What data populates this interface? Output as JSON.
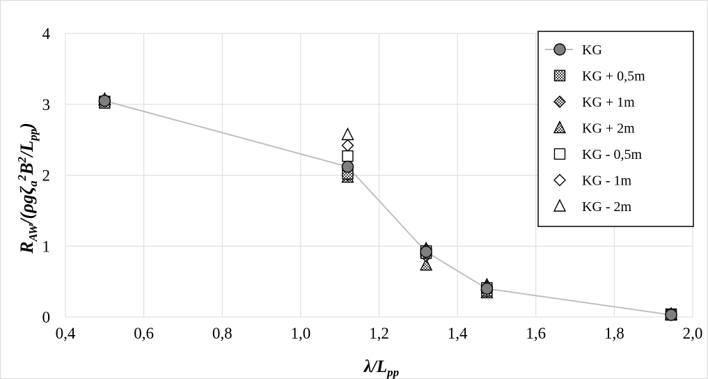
{
  "chart_data": {
    "type": "scatter",
    "title": "",
    "xlabel": {
      "main": "λ/L",
      "sub": "pp"
    },
    "ylabel": {
      "r": "R",
      "r_sub": "AW",
      "slash1": "/(ρgζ",
      "zeta_sub": "a",
      "sup1": "2",
      "b": "B",
      "sup2": "2",
      "slash2": "/L",
      "l_sub": "pp",
      "close": ")"
    },
    "xlim": [
      0.4,
      2.0
    ],
    "ylim": [
      0,
      4
    ],
    "x_ticks": [
      "0,4",
      "0,6",
      "0,8",
      "1,0",
      "1,2",
      "1,4",
      "1,6",
      "1,8",
      "2,0"
    ],
    "y_ticks": [
      "0",
      "1",
      "2",
      "3",
      "4"
    ],
    "grid": true,
    "legend_position": "top-right",
    "colors": {
      "grid": "#d9d9d9",
      "line": "#bfbfbf",
      "marker_fill": "#7f7f7f",
      "outline": "#000000",
      "hatch": "#404040"
    },
    "series": [
      {
        "name": "KG",
        "marker": "circle",
        "line": true,
        "x": [
          0.5,
          1.12,
          1.32,
          1.475,
          1.945
        ],
        "y": [
          3.05,
          2.12,
          0.92,
          0.4,
          0.03
        ]
      },
      {
        "name": "KG + 0,5m",
        "marker": "square-hatched",
        "line": false,
        "x": [
          0.5,
          1.12,
          1.32,
          1.475,
          1.945
        ],
        "y": [
          3.02,
          2.02,
          0.9,
          0.37,
          0.03
        ]
      },
      {
        "name": "KG + 1m",
        "marker": "diamond-hatched",
        "line": false,
        "x": [
          0.5,
          1.12,
          1.32,
          1.475,
          1.945
        ],
        "y": [
          3.03,
          2.0,
          0.86,
          0.37,
          0.03
        ]
      },
      {
        "name": "KG + 2m",
        "marker": "triangle-hatched",
        "line": false,
        "x": [
          0.5,
          1.12,
          1.32,
          1.475,
          1.945
        ],
        "y": [
          3.06,
          1.97,
          0.73,
          0.34,
          0.03
        ]
      },
      {
        "name": "KG - 0,5m",
        "marker": "square-open",
        "line": false,
        "x": [
          0.5,
          1.12,
          1.32,
          1.475,
          1.945
        ],
        "y": [
          3.04,
          2.27,
          0.93,
          0.41,
          0.04
        ]
      },
      {
        "name": "KG - 1m",
        "marker": "diamond-open",
        "line": false,
        "x": [
          0.5,
          1.12,
          1.32,
          1.475,
          1.945
        ],
        "y": [
          3.05,
          2.42,
          0.95,
          0.43,
          0.04
        ]
      },
      {
        "name": "KG - 2m",
        "marker": "triangle-open",
        "line": false,
        "x": [
          0.5,
          1.12,
          1.32,
          1.475,
          1.945
        ],
        "y": [
          3.07,
          2.57,
          0.96,
          0.45,
          0.04
        ]
      }
    ]
  }
}
